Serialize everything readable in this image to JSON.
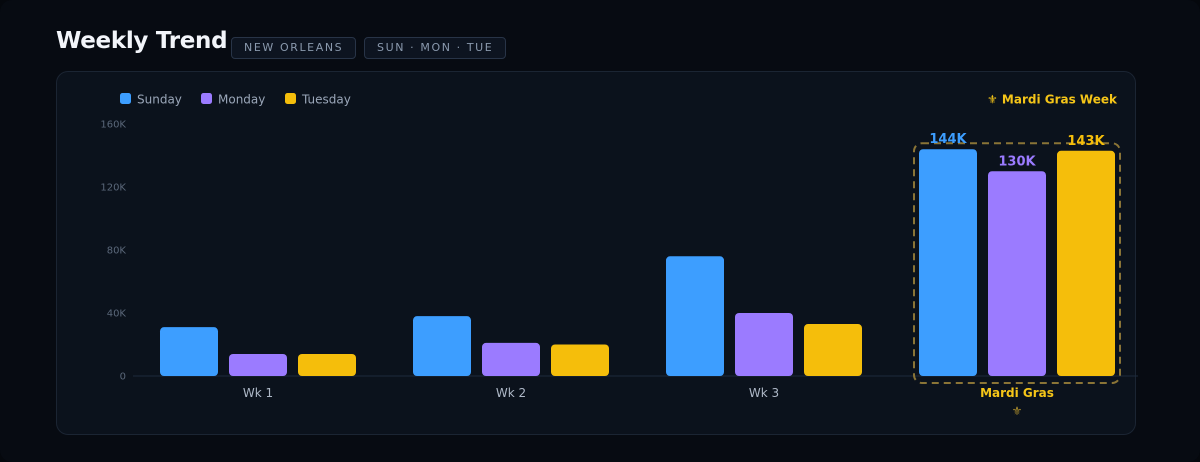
{
  "header": {
    "title": "Weekly Trend",
    "chips": [
      "NEW ORLEANS",
      "SUN · MON · TUE"
    ]
  },
  "highlight": {
    "legend_note": "⚜ Mardi Gras Week",
    "category_icon": "⚜",
    "icon_name": "fleur-de-lis-icon",
    "color": "#f5c518",
    "data_labels": [
      "144K",
      "130K",
      "143K"
    ]
  },
  "colors": {
    "sunday": "#3d9eff",
    "monday": "#9b7bff",
    "tuesday": "#f5be0b",
    "background": "#070b12",
    "card": "#0b121c"
  },
  "chart_data": {
    "type": "bar",
    "title": "Weekly Trend",
    "categories": [
      "Wk 1",
      "Wk 2",
      "Wk 3",
      "Mardi Gras"
    ],
    "series": [
      {
        "name": "Sunday",
        "values": [
          31000,
          38000,
          76000,
          144000
        ]
      },
      {
        "name": "Monday",
        "values": [
          14000,
          21000,
          40000,
          130000
        ]
      },
      {
        "name": "Tuesday",
        "values": [
          14000,
          20000,
          33000,
          143000
        ]
      }
    ],
    "ylim": [
      0,
      160000
    ],
    "y_ticks": [
      "0",
      "40K",
      "80K",
      "120K",
      "160K"
    ],
    "y_tick_values": [
      0,
      40000,
      80000,
      120000,
      160000
    ],
    "grid": false,
    "legend_placement": "top-left",
    "highlighted_category": "Mardi Gras"
  }
}
